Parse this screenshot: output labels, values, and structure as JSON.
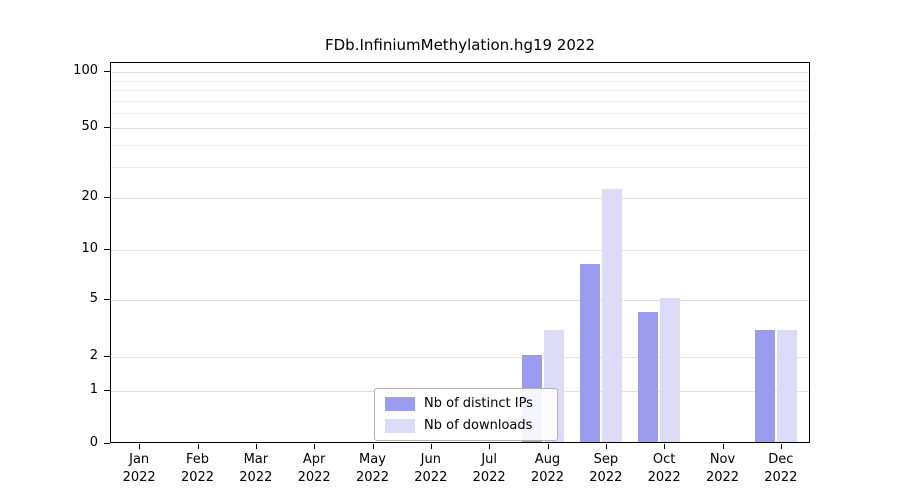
{
  "chart_data": {
    "type": "bar",
    "title": "FDb.InfiniumMethylation.hg19 2022",
    "categories": [
      "Jan",
      "Feb",
      "Mar",
      "Apr",
      "May",
      "Jun",
      "Jul",
      "Aug",
      "Sep",
      "Oct",
      "Nov",
      "Dec"
    ],
    "year_label": "2022",
    "series": [
      {
        "name": "Nb of distinct IPs",
        "color": "#9b9bef",
        "values": [
          0,
          0,
          0,
          0,
          0,
          0,
          0,
          2,
          8,
          4,
          0,
          3
        ]
      },
      {
        "name": "Nb of downloads",
        "color": "#dcdcf9",
        "values": [
          0,
          0,
          0,
          0,
          0,
          0,
          0,
          3,
          22,
          5,
          0,
          3
        ]
      }
    ],
    "y_ticks": [
      0,
      1,
      2,
      5,
      10,
      20,
      50,
      100
    ],
    "y_minor_gridlines": [
      30,
      40,
      60,
      70,
      80,
      90
    ],
    "y_scale": "log-like",
    "ylim": [
      0,
      110
    ],
    "grid": true,
    "legend_position": "bottom-center-inside",
    "xlabel": "",
    "ylabel": ""
  }
}
